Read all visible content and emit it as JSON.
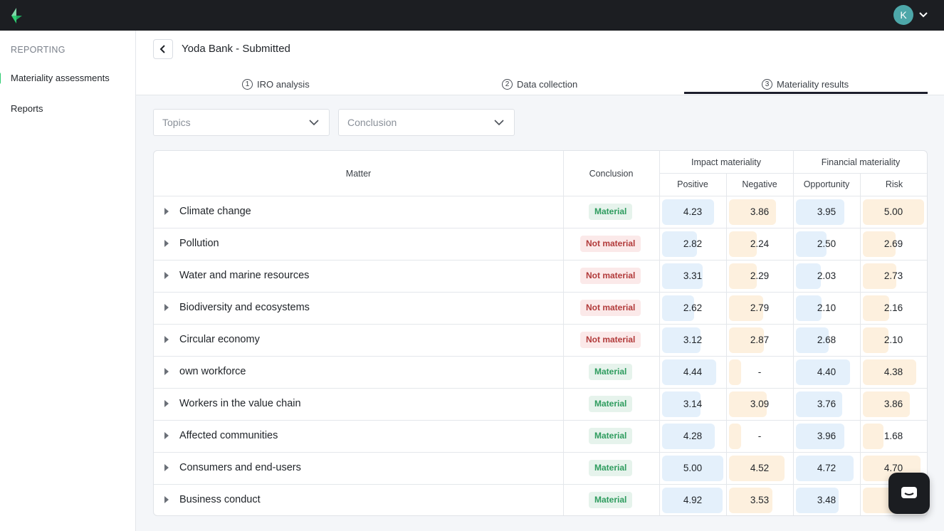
{
  "topbar": {
    "user_initial": "K"
  },
  "sidebar": {
    "section": "REPORTING",
    "items": [
      {
        "label": "Materiality assessments"
      },
      {
        "label": "Reports"
      }
    ]
  },
  "header": {
    "title": "Yoda Bank - Submitted"
  },
  "tabs": [
    {
      "num": "1",
      "label": "IRO analysis"
    },
    {
      "num": "2",
      "label": "Data collection"
    },
    {
      "num": "3",
      "label": "Materiality results"
    }
  ],
  "filters": {
    "topics": "Topics",
    "conclusion": "Conclusion"
  },
  "table": {
    "headers": {
      "matter": "Matter",
      "conclusion": "Conclusion",
      "impact": "Impact materiality",
      "financial": "Financial materiality",
      "positive": "Positive",
      "negative": "Negative",
      "opportunity": "Opportunity",
      "risk": "Risk"
    },
    "rows": [
      {
        "matter": "Climate change",
        "conclusion": "Material",
        "positive": "4.23",
        "negative": "3.86",
        "opportunity": "3.95",
        "risk": "5.00"
      },
      {
        "matter": "Pollution",
        "conclusion": "Not material",
        "positive": "2.82",
        "negative": "2.24",
        "opportunity": "2.50",
        "risk": "2.69"
      },
      {
        "matter": "Water and marine resources",
        "conclusion": "Not material",
        "positive": "3.31",
        "negative": "2.29",
        "opportunity": "2.03",
        "risk": "2.73"
      },
      {
        "matter": "Biodiversity and ecosystems",
        "conclusion": "Not material",
        "positive": "2.62",
        "negative": "2.79",
        "opportunity": "2.10",
        "risk": "2.16"
      },
      {
        "matter": "Circular economy",
        "conclusion": "Not material",
        "positive": "3.12",
        "negative": "2.87",
        "opportunity": "2.68",
        "risk": "2.10"
      },
      {
        "matter": "own workforce",
        "conclusion": "Material",
        "positive": "4.44",
        "negative": "-",
        "opportunity": "4.40",
        "risk": "4.38"
      },
      {
        "matter": "Workers in the value chain",
        "conclusion": "Material",
        "positive": "3.14",
        "negative": "3.09",
        "opportunity": "3.76",
        "risk": "3.86"
      },
      {
        "matter": "Affected communities",
        "conclusion": "Material",
        "positive": "4.28",
        "negative": "-",
        "opportunity": "3.96",
        "risk": "1.68"
      },
      {
        "matter": "Consumers and end-users",
        "conclusion": "Material",
        "positive": "5.00",
        "negative": "4.52",
        "opportunity": "4.72",
        "risk": "4.70"
      },
      {
        "matter": "Business conduct",
        "conclusion": "Material",
        "positive": "4.92",
        "negative": "3.53",
        "opportunity": "3.48",
        "risk": "4"
      }
    ]
  },
  "colors": {
    "material": "#2e9c5e",
    "not_material": "#b23b3b",
    "impact_bar": "#e4f0fb",
    "financial_bar": "#fdf0de"
  }
}
